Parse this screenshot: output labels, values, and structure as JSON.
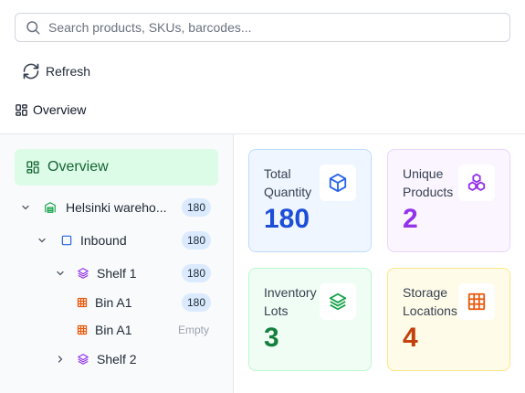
{
  "search": {
    "placeholder": "Search products, SKUs, barcodes...",
    "value": ""
  },
  "toolbar": {
    "refresh_label": "Refresh"
  },
  "view_tab": {
    "label": "Overview"
  },
  "sidebar": {
    "nav_overview_label": "Overview",
    "tree": [
      {
        "label": "Helsinki wareho...",
        "badge": "180",
        "icon": "warehouse-icon"
      },
      {
        "label": "Inbound",
        "badge": "180",
        "icon": "square-icon"
      },
      {
        "label": "Shelf 1",
        "badge": "180",
        "icon": "layers-icon"
      },
      {
        "label": "Bin A1",
        "badge": "180",
        "icon": "grid-icon"
      },
      {
        "label": "Bin A1",
        "badge": "Empty",
        "icon": "grid-icon"
      },
      {
        "label": "Shelf 2",
        "badge": "",
        "icon": "layers-icon"
      }
    ]
  },
  "cards": [
    {
      "label": "Total Quantity",
      "value": "180",
      "icon": "package-icon",
      "color": "#1d4ed8",
      "bg": "#eff6ff",
      "border": "#bfdbfe"
    },
    {
      "label": "Unique Products",
      "value": "2",
      "icon": "boxes-icon",
      "color": "#9333ea",
      "bg": "#faf5ff",
      "border": "#e9d5ff"
    },
    {
      "label": "Inventory Lots",
      "value": "3",
      "icon": "layers-icon",
      "color": "#15803d",
      "bg": "#f0fdf4",
      "border": "#bbf7d0"
    },
    {
      "label": "Storage Locations",
      "value": "4",
      "icon": "grid-icon",
      "color": "#c2410c",
      "bg": "#fefce8",
      "border": "#fde68a"
    }
  ]
}
